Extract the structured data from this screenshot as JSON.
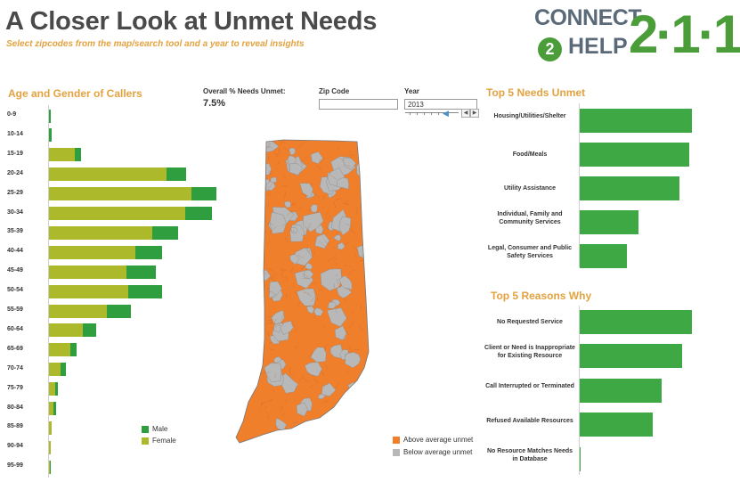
{
  "header": {
    "title": "A Closer Look at Unmet Needs",
    "subtitle": "Select zipcodes from the map/search tool and a year to reveal insights"
  },
  "logo": {
    "connect_text": "CONNECT",
    "two_text": "2",
    "help_text": "HELP",
    "number_text": "2·1·1",
    "accent_color": "#4a9d39"
  },
  "age_gender": {
    "title": "Age and Gender of Callers",
    "colors": {
      "male": "#2f9e3f",
      "female": "#acb92b"
    },
    "legend": {
      "male": "Male",
      "female": "Female"
    },
    "groups": [
      {
        "label": "0-9",
        "female": 0,
        "male": 2
      },
      {
        "label": "10-14",
        "female": 0,
        "male": 3
      },
      {
        "label": "15-19",
        "female": 29,
        "male": 7
      },
      {
        "label": "20-24",
        "female": 132,
        "male": 22
      },
      {
        "label": "25-29",
        "female": 160,
        "male": 28
      },
      {
        "label": "30-34",
        "female": 153,
        "male": 30
      },
      {
        "label": "35-39",
        "female": 116,
        "male": 29
      },
      {
        "label": "40-44",
        "female": 97,
        "male": 30
      },
      {
        "label": "45-49",
        "female": 87,
        "male": 33
      },
      {
        "label": "50-54",
        "female": 89,
        "male": 38
      },
      {
        "label": "55-59",
        "female": 65,
        "male": 27
      },
      {
        "label": "60-64",
        "female": 38,
        "male": 15
      },
      {
        "label": "65-69",
        "female": 24,
        "male": 7
      },
      {
        "label": "70-74",
        "female": 13,
        "male": 6
      },
      {
        "label": "75-79",
        "female": 7,
        "male": 3
      },
      {
        "label": "80-84",
        "female": 5,
        "male": 3
      },
      {
        "label": "85-89",
        "female": 3,
        "male": 0
      },
      {
        "label": "90-94",
        "female": 2,
        "male": 0
      },
      {
        "label": "95-99",
        "female": 1,
        "male": 1
      }
    ]
  },
  "overall": {
    "label": "Overall % Needs Unmet:",
    "value": "7.5%"
  },
  "zip_search": {
    "label": "Zip Code",
    "value": ""
  },
  "year_filter": {
    "label": "Year",
    "value": "2013"
  },
  "map_legend": {
    "above": "Above average unmet",
    "below": "Below average unmet",
    "above_color": "#f07f2c",
    "below_color": "#b8b8b8"
  },
  "top_needs": {
    "title": "Top 5 Needs Unmet",
    "bar_color": "#3ea944",
    "items": [
      {
        "label": "Housing/Utilities/Shelter",
        "value": 100
      },
      {
        "label": "Food/Meals",
        "value": 98
      },
      {
        "label": "Utility Assistance",
        "value": 89
      },
      {
        "label": "Individual, Family and Community Services",
        "value": 52
      },
      {
        "label": "Legal, Consumer and Public Safety Services",
        "value": 42
      }
    ]
  },
  "top_reasons": {
    "title": "Top 5 Reasons Why",
    "bar_color": "#3ea944",
    "items": [
      {
        "label": "No Requested Service",
        "value": 100
      },
      {
        "label": "Client or Need is Inappropriate for Existing Resource",
        "value": 91
      },
      {
        "label": "Call Interrupted or Terminated",
        "value": 73
      },
      {
        "label": "Refused Available Resources",
        "value": 65
      },
      {
        "label": "No Resource Matches Needs in Database",
        "value": 1
      }
    ]
  }
}
